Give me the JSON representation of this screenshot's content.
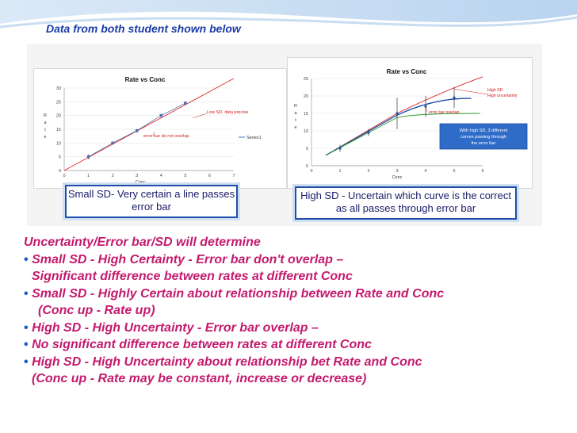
{
  "slide": {
    "title": "Data from both student shown below"
  },
  "chart_data": [
    {
      "type": "scatter",
      "title": "Rate vs Conc",
      "xlabel": "Conc",
      "ylabel": "Rate",
      "xlim": [
        0,
        7
      ],
      "ylim": [
        0,
        30
      ],
      "xticks": [
        "0",
        "1",
        "2",
        "3",
        "4",
        "5",
        "6",
        "7"
      ],
      "yticks": [
        "0",
        "5",
        "10",
        "15",
        "20",
        "25",
        "30"
      ],
      "series": [
        {
          "name": "Series1",
          "x": [
            1,
            2,
            3,
            4,
            5
          ],
          "y": [
            5,
            10,
            14.5,
            20,
            24.5
          ],
          "err": [
            0.8,
            0.5,
            0.6,
            0.4,
            0.6
          ]
        }
      ],
      "legend": "right",
      "annotations": [
        "Low SD, data precise",
        "error bar do not overlap"
      ],
      "callout": "Small SD- Very certain a line passes error bar"
    },
    {
      "type": "line",
      "title": "Rate vs Conc",
      "xlabel": "Conc",
      "ylabel": "Rate",
      "xlim": [
        0,
        6
      ],
      "ylim": [
        0,
        25
      ],
      "xticks": [
        "0",
        "1",
        "2",
        "3",
        "4",
        "5",
        "6"
      ],
      "yticks": [
        "0",
        "5",
        "10",
        "15",
        "20",
        "25"
      ],
      "series": [
        {
          "x": [
            1,
            2,
            3,
            4,
            5
          ],
          "y": [
            5,
            9.5,
            15,
            17,
            19.5
          ],
          "err": [
            1,
            1,
            4.5,
            3,
            3
          ]
        }
      ],
      "annotations": [
        "High SD",
        "High uncertainty",
        "error bar overlap",
        "With high SD, 3 different curves passing through the error bar"
      ],
      "callout": "High SD - Uncertain which curve is the correct as all passes through error bar"
    }
  ],
  "text": {
    "heading": "Uncertainty/Error bar/SD will determine",
    "lines": [
      "Small SD - High Certainty - Error bar don't overlap –",
      "Significant difference between rates at different Conc",
      "Small SD - Highly Certain about relationship between Rate and Conc",
      "(Conc up - Rate up)",
      "High SD - High Uncertainty - Error bar overlap –",
      "No significant difference between rates at different Conc",
      "High SD - High Uncertainty about relationship bet Rate and Conc",
      "(Conc up - Rate may be constant, increase or decrease)"
    ],
    "bullet": "•"
  },
  "colors": {
    "title": "#1a3aa8",
    "body": "#c41a6e",
    "bullet": "#1a5ad0",
    "trend_red": "#e0252d",
    "series_blue": "#1f4fa8",
    "series_green": "#2b9a2b",
    "annotation_red": "#d21a1a"
  }
}
